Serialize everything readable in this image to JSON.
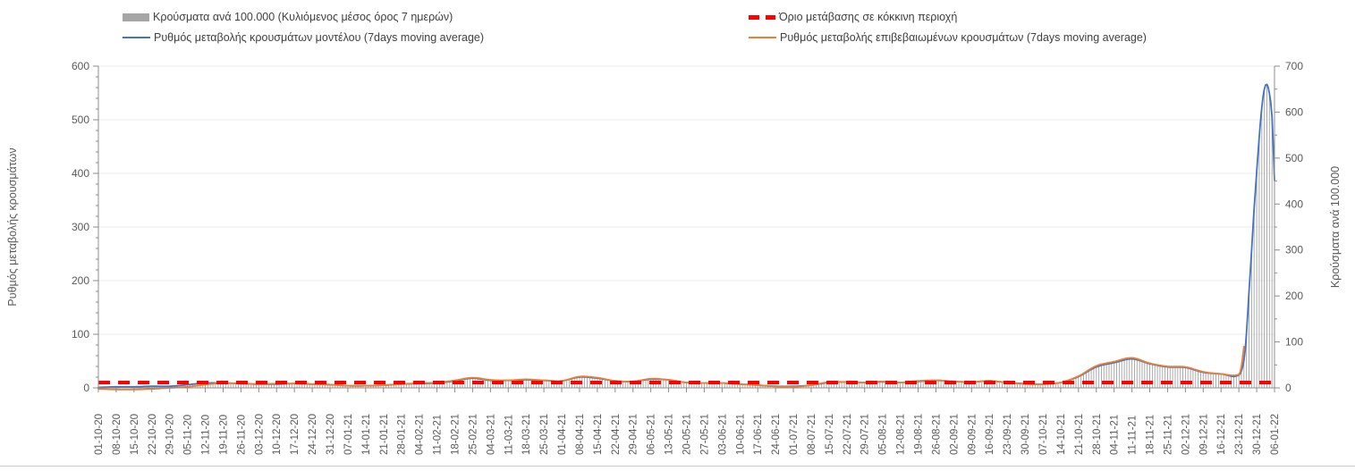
{
  "page": {
    "background": "#ffffff"
  },
  "legend": {
    "position": "top",
    "items": [
      {
        "label": "Κρούσματα ανά 100.000 (Κυλιόμενος μέσος όρος 7 ημερών)",
        "swatch": "gray-bar",
        "color": "#a6a6a6"
      },
      {
        "label": "Ρυθμός μεταβολής κρουσμάτων μοντέλου (7days moving average)",
        "swatch": "solid-line",
        "color": "#4472c4"
      },
      {
        "label": "Όριο μετάβασης σε κόκκινη περιοχή",
        "swatch": "dashed-line",
        "color": "#ff0000"
      },
      {
        "label": "Ρυθμός μεταβολής επιβεβαιωμένων κρουσμάτων (7days moving average)",
        "swatch": "solid-line",
        "color": "#ed7d31"
      }
    ]
  },
  "chart_data": {
    "type": "bar+line combo, dual y-axis",
    "title": "",
    "grid": "horizontal, light gray",
    "legend_position": "top",
    "left_axis": {
      "label": "Ρυθμός μεταβολής κρουσμάτων",
      "min": 0,
      "max": 600,
      "step": 100,
      "minor_step": 20
    },
    "right_axis": {
      "label": "Κρούσματα ανά 100.000",
      "min": 0,
      "max": 700,
      "step": 100,
      "minor_step": 50
    },
    "x_axis": {
      "days_per_tick": 7,
      "total_days": 462,
      "tick_labels": [
        "01-10-20",
        "08-10-20",
        "15-10-20",
        "22-10-20",
        "29-10-20",
        "05-11-20",
        "12-11-20",
        "19-11-20",
        "26-11-20",
        "03-12-20",
        "10-12-20",
        "17-12-20",
        "24-12-20",
        "31-12-20",
        "07-01-21",
        "14-01-21",
        "21-01-21",
        "28-01-21",
        "04-02-21",
        "11-02-21",
        "18-02-21",
        "25-02-21",
        "04-03-21",
        "11-03-21",
        "18-03-21",
        "25-03-21",
        "01-04-21",
        "08-04-21",
        "15-04-21",
        "22-04-21",
        "29-04-21",
        "06-05-21",
        "13-05-21",
        "20-05-21",
        "27-05-21",
        "03-06-21",
        "10-06-21",
        "17-06-21",
        "24-06-21",
        "01-07-21",
        "08-07-21",
        "15-07-21",
        "22-07-21",
        "29-07-21",
        "05-08-21",
        "12-08-21",
        "19-08-21",
        "26-08-21",
        "02-09-21",
        "09-09-21",
        "16-09-21",
        "23-09-21",
        "30-09-21",
        "07-10-21",
        "14-10-21",
        "21-10-21",
        "28-10-21",
        "04-11-21",
        "11-11-21",
        "18-11-21",
        "25-11-21",
        "02-12-21",
        "09-12-21",
        "16-12-21",
        "23-12-21",
        "30-12-21",
        "06-01-22"
      ]
    },
    "threshold": {
      "name": "Όριο μετάβασης σε κόκκινη περιοχή",
      "axis": "left",
      "value": 10,
      "color": "#ff0000",
      "style": "thick dashed"
    },
    "series": [
      {
        "name": "Κρούσματα ανά 100.000 (Κυλιόμενος μέσος όρος 7 ημερών)",
        "type": "bar",
        "axis": "right",
        "color": "#a6a6a6",
        "bar_frequency": "daily",
        "points": [
          [
            0,
            1
          ],
          [
            7,
            2
          ],
          [
            14,
            2
          ],
          [
            21,
            3
          ],
          [
            28,
            4
          ],
          [
            35,
            7
          ],
          [
            42,
            10
          ],
          [
            49,
            11
          ],
          [
            56,
            9
          ],
          [
            63,
            8
          ],
          [
            70,
            8
          ],
          [
            77,
            9
          ],
          [
            84,
            8
          ],
          [
            91,
            7
          ],
          [
            98,
            5
          ],
          [
            105,
            5
          ],
          [
            112,
            6
          ],
          [
            119,
            8
          ],
          [
            126,
            9
          ],
          [
            133,
            11
          ],
          [
            140,
            15
          ],
          [
            147,
            21
          ],
          [
            154,
            16
          ],
          [
            161,
            16
          ],
          [
            168,
            17
          ],
          [
            175,
            16
          ],
          [
            182,
            15
          ],
          [
            189,
            23
          ],
          [
            196,
            21
          ],
          [
            203,
            15
          ],
          [
            210,
            14
          ],
          [
            217,
            19
          ],
          [
            224,
            17
          ],
          [
            231,
            12
          ],
          [
            238,
            11
          ],
          [
            245,
            10
          ],
          [
            252,
            8
          ],
          [
            259,
            6
          ],
          [
            266,
            4
          ],
          [
            273,
            3
          ],
          [
            280,
            6
          ],
          [
            287,
            12
          ],
          [
            294,
            13
          ],
          [
            301,
            12
          ],
          [
            308,
            13
          ],
          [
            315,
            12
          ],
          [
            322,
            14
          ],
          [
            329,
            16
          ],
          [
            336,
            14
          ],
          [
            343,
            13
          ],
          [
            350,
            15
          ],
          [
            357,
            12
          ],
          [
            364,
            9
          ],
          [
            371,
            8
          ],
          [
            378,
            12
          ],
          [
            385,
            25
          ],
          [
            392,
            45
          ],
          [
            399,
            55
          ],
          [
            406,
            63
          ],
          [
            413,
            52
          ],
          [
            420,
            45
          ],
          [
            427,
            44
          ],
          [
            434,
            34
          ],
          [
            441,
            30
          ],
          [
            448,
            28
          ],
          [
            450,
            60
          ],
          [
            451,
            120
          ],
          [
            452,
            210
          ],
          [
            453,
            300
          ],
          [
            454,
            390
          ],
          [
            455,
            470
          ],
          [
            456,
            545
          ],
          [
            457,
            610
          ],
          [
            458,
            650
          ],
          [
            459,
            660
          ],
          [
            460,
            640
          ],
          [
            461,
            590
          ],
          [
            462,
            452
          ]
        ]
      },
      {
        "name": "Ρυθμός μεταβολής κρουσμάτων μοντέλου (7days moving average)",
        "type": "line",
        "axis": "left",
        "color": "#4472c4",
        "points": [
          [
            0,
            1
          ],
          [
            7,
            2
          ],
          [
            14,
            2
          ],
          [
            21,
            3
          ],
          [
            28,
            3
          ],
          [
            35,
            6
          ],
          [
            42,
            9
          ],
          [
            49,
            9
          ],
          [
            56,
            8
          ],
          [
            63,
            7
          ],
          [
            70,
            7
          ],
          [
            77,
            8
          ],
          [
            84,
            7
          ],
          [
            91,
            6
          ],
          [
            98,
            4
          ],
          [
            105,
            4
          ],
          [
            112,
            5
          ],
          [
            119,
            7
          ],
          [
            126,
            8
          ],
          [
            133,
            9
          ],
          [
            140,
            13
          ],
          [
            147,
            18
          ],
          [
            154,
            14
          ],
          [
            161,
            14
          ],
          [
            168,
            15
          ],
          [
            175,
            14
          ],
          [
            182,
            13
          ],
          [
            189,
            20
          ],
          [
            196,
            18
          ],
          [
            203,
            13
          ],
          [
            210,
            12
          ],
          [
            217,
            16
          ],
          [
            224,
            15
          ],
          [
            231,
            10
          ],
          [
            238,
            9
          ],
          [
            245,
            9
          ],
          [
            252,
            7
          ],
          [
            259,
            5
          ],
          [
            266,
            3
          ],
          [
            273,
            3
          ],
          [
            280,
            5
          ],
          [
            287,
            10
          ],
          [
            294,
            11
          ],
          [
            301,
            10
          ],
          [
            308,
            11
          ],
          [
            315,
            10
          ],
          [
            322,
            12
          ],
          [
            329,
            14
          ],
          [
            336,
            12
          ],
          [
            343,
            11
          ],
          [
            350,
            13
          ],
          [
            357,
            10
          ],
          [
            364,
            8
          ],
          [
            371,
            7
          ],
          [
            378,
            10
          ],
          [
            385,
            21
          ],
          [
            392,
            39
          ],
          [
            399,
            47
          ],
          [
            406,
            54
          ],
          [
            413,
            45
          ],
          [
            420,
            39
          ],
          [
            427,
            38
          ],
          [
            434,
            29
          ],
          [
            441,
            26
          ],
          [
            448,
            24
          ],
          [
            450,
            51
          ],
          [
            451,
            103
          ],
          [
            452,
            180
          ],
          [
            453,
            257
          ],
          [
            454,
            334
          ],
          [
            455,
            403
          ],
          [
            456,
            467
          ],
          [
            457,
            523
          ],
          [
            458,
            557
          ],
          [
            459,
            566
          ],
          [
            460,
            549
          ],
          [
            461,
            506
          ],
          [
            462,
            387
          ]
        ]
      },
      {
        "name": "Ρυθμός μεταβολής επιβεβαιωμένων κρουσμάτων (7days moving average)",
        "type": "line",
        "axis": "left",
        "color": "#ed7d31",
        "points": [
          [
            0,
            -2
          ],
          [
            7,
            -3
          ],
          [
            14,
            -3
          ],
          [
            21,
            -2
          ],
          [
            28,
            0
          ],
          [
            35,
            2
          ],
          [
            42,
            6
          ],
          [
            49,
            9
          ],
          [
            56,
            8
          ],
          [
            63,
            7
          ],
          [
            70,
            8
          ],
          [
            77,
            8
          ],
          [
            84,
            7
          ],
          [
            91,
            6
          ],
          [
            98,
            4
          ],
          [
            105,
            4
          ],
          [
            112,
            5
          ],
          [
            119,
            7
          ],
          [
            126,
            9
          ],
          [
            133,
            10
          ],
          [
            140,
            14
          ],
          [
            147,
            19
          ],
          [
            154,
            15
          ],
          [
            161,
            14
          ],
          [
            168,
            16
          ],
          [
            175,
            14
          ],
          [
            182,
            13
          ],
          [
            189,
            21
          ],
          [
            196,
            19
          ],
          [
            203,
            13
          ],
          [
            210,
            12
          ],
          [
            217,
            17
          ],
          [
            224,
            15
          ],
          [
            231,
            10
          ],
          [
            238,
            9
          ],
          [
            245,
            9
          ],
          [
            252,
            7
          ],
          [
            259,
            5
          ],
          [
            266,
            3
          ],
          [
            273,
            2
          ],
          [
            280,
            5
          ],
          [
            287,
            11
          ],
          [
            294,
            11
          ],
          [
            301,
            10
          ],
          [
            308,
            12
          ],
          [
            315,
            10
          ],
          [
            322,
            13
          ],
          [
            329,
            14
          ],
          [
            336,
            12
          ],
          [
            343,
            11
          ],
          [
            350,
            13
          ],
          [
            357,
            10
          ],
          [
            364,
            7
          ],
          [
            371,
            7
          ],
          [
            378,
            10
          ],
          [
            385,
            22
          ],
          [
            392,
            41
          ],
          [
            399,
            49
          ],
          [
            406,
            56
          ],
          [
            413,
            46
          ],
          [
            420,
            40
          ],
          [
            427,
            39
          ],
          [
            434,
            30
          ],
          [
            441,
            26
          ],
          [
            448,
            25
          ],
          [
            449,
            40
          ],
          [
            450,
            77
          ]
        ]
      }
    ]
  }
}
